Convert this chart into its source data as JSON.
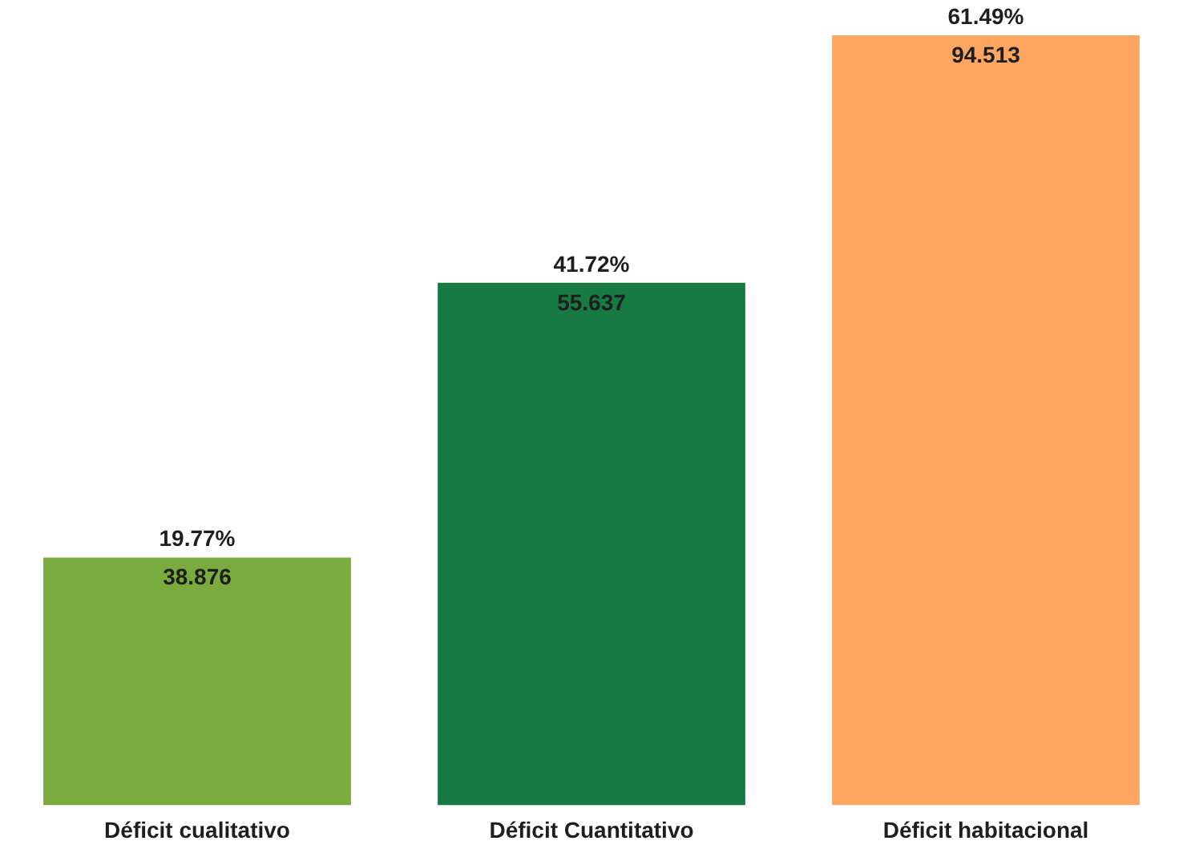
{
  "chart_data": {
    "type": "bar",
    "categories": [
      "Déficit cualitativo",
      "Déficit Cuantitativo",
      "Déficit habitacional"
    ],
    "values": [
      19.77,
      41.72,
      61.49
    ],
    "colors": [
      "#7aab3f",
      "#177a42",
      "#fca662"
    ],
    "value_labels": [
      "19.77%",
      "41.72%",
      "61.49%"
    ],
    "annotations": [
      {
        "text": "38.876",
        "x": "Déficit cualitativo",
        "y": 19.77
      },
      {
        "text": "55.637",
        "x": "Déficit Cuantitativo",
        "y": 41.72
      },
      {
        "text": "94.513",
        "x": "Déficit habitacional",
        "y": 61.49
      }
    ],
    "tick_labels": "x",
    "grid": false,
    "legend": false
  }
}
